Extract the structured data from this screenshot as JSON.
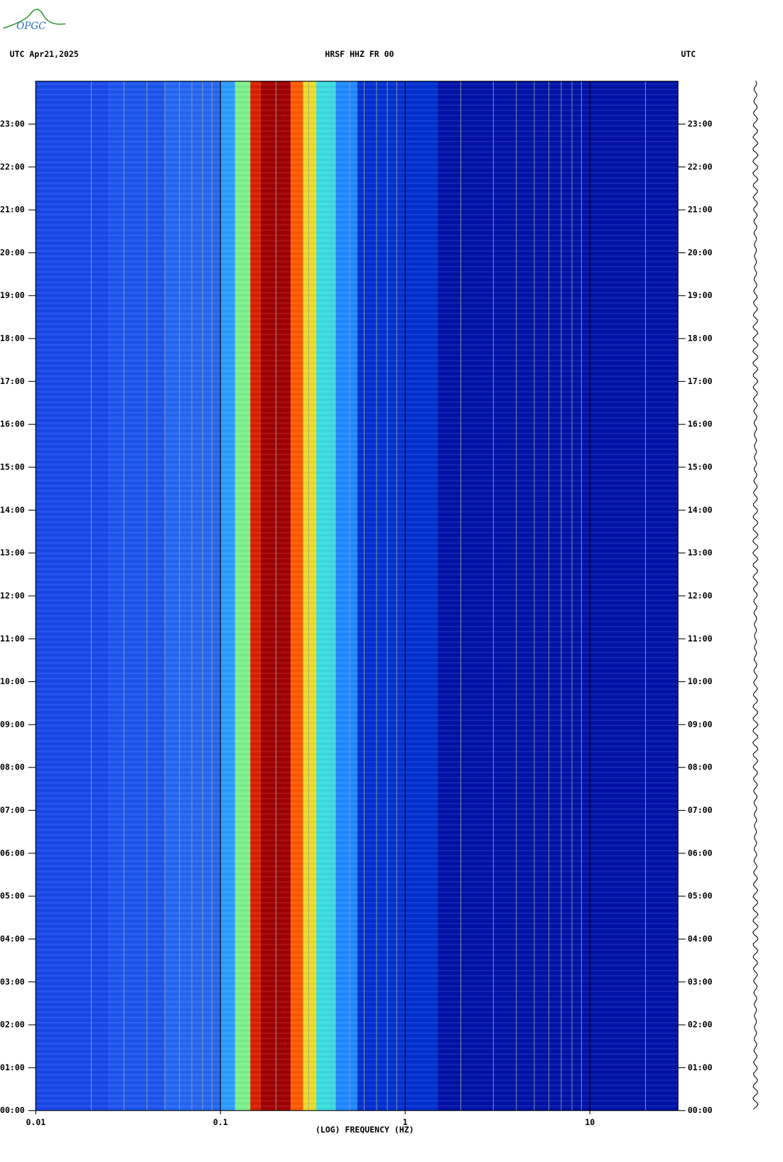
{
  "chart_data": {
    "type": "spectrogram",
    "logo": "OPGC",
    "title": "HRSF HHZ FR 00",
    "left_label": "UTC  Apr21,2025",
    "right_label": "UTC",
    "xlabel": "(LOG) FREQUENCY (HZ)",
    "xscale": "log",
    "xlim": [
      0.01,
      30
    ],
    "xticks": [
      0.01,
      0.1,
      1,
      10
    ],
    "xgrid": [
      0.02,
      0.03,
      0.04,
      0.05,
      0.06,
      0.07,
      0.08,
      0.09,
      0.2,
      0.3,
      0.4,
      0.5,
      0.6,
      0.7,
      0.8,
      0.9,
      2,
      3,
      4,
      5,
      6,
      7,
      8,
      9,
      20
    ],
    "ylim": [
      0,
      24
    ],
    "yticks": [
      {
        "value": 0,
        "label": "00:00"
      },
      {
        "value": 1,
        "label": "01:00"
      },
      {
        "value": 2,
        "label": "02:00"
      },
      {
        "value": 3,
        "label": "03:00"
      },
      {
        "value": 4,
        "label": "04:00"
      },
      {
        "value": 5,
        "label": "05:00"
      },
      {
        "value": 6,
        "label": "06:00"
      },
      {
        "value": 7,
        "label": "07:00"
      },
      {
        "value": 8,
        "label": "08:00"
      },
      {
        "value": 9,
        "label": "09:00"
      },
      {
        "value": 10,
        "label": "10:00"
      },
      {
        "value": 11,
        "label": "11:00"
      },
      {
        "value": 12,
        "label": "12:00"
      },
      {
        "value": 13,
        "label": "13:00"
      },
      {
        "value": 14,
        "label": "14:00"
      },
      {
        "value": 15,
        "label": "15:00"
      },
      {
        "value": 16,
        "label": "16:00"
      },
      {
        "value": 17,
        "label": "17:00"
      },
      {
        "value": 18,
        "label": "18:00"
      },
      {
        "value": 19,
        "label": "19:00"
      },
      {
        "value": 20,
        "label": "20:00"
      },
      {
        "value": 21,
        "label": "21:00"
      },
      {
        "value": 22,
        "label": "22:00"
      },
      {
        "value": 23,
        "label": "23:00"
      }
    ],
    "bands": [
      {
        "from": 0.01,
        "to": 0.025,
        "color": "#1848e8"
      },
      {
        "from": 0.025,
        "to": 0.05,
        "color": "#1c55ee"
      },
      {
        "from": 0.05,
        "to": 0.1,
        "color": "#2466f2"
      },
      {
        "from": 0.1,
        "to": 0.12,
        "color": "#2a9cff"
      },
      {
        "from": 0.12,
        "to": 0.145,
        "color": "#7cf08c"
      },
      {
        "from": 0.145,
        "to": 0.165,
        "color": "#d82000"
      },
      {
        "from": 0.165,
        "to": 0.24,
        "color": "#a00000"
      },
      {
        "from": 0.24,
        "to": 0.28,
        "color": "#ff5a00"
      },
      {
        "from": 0.28,
        "to": 0.33,
        "color": "#ecdc28"
      },
      {
        "from": 0.33,
        "to": 0.42,
        "color": "#3cdce0"
      },
      {
        "from": 0.42,
        "to": 0.55,
        "color": "#2088ff"
      },
      {
        "from": 0.55,
        "to": 1.5,
        "color": "#0030d0"
      },
      {
        "from": 1.5,
        "to": 30,
        "color": "#0012a8"
      }
    ]
  }
}
